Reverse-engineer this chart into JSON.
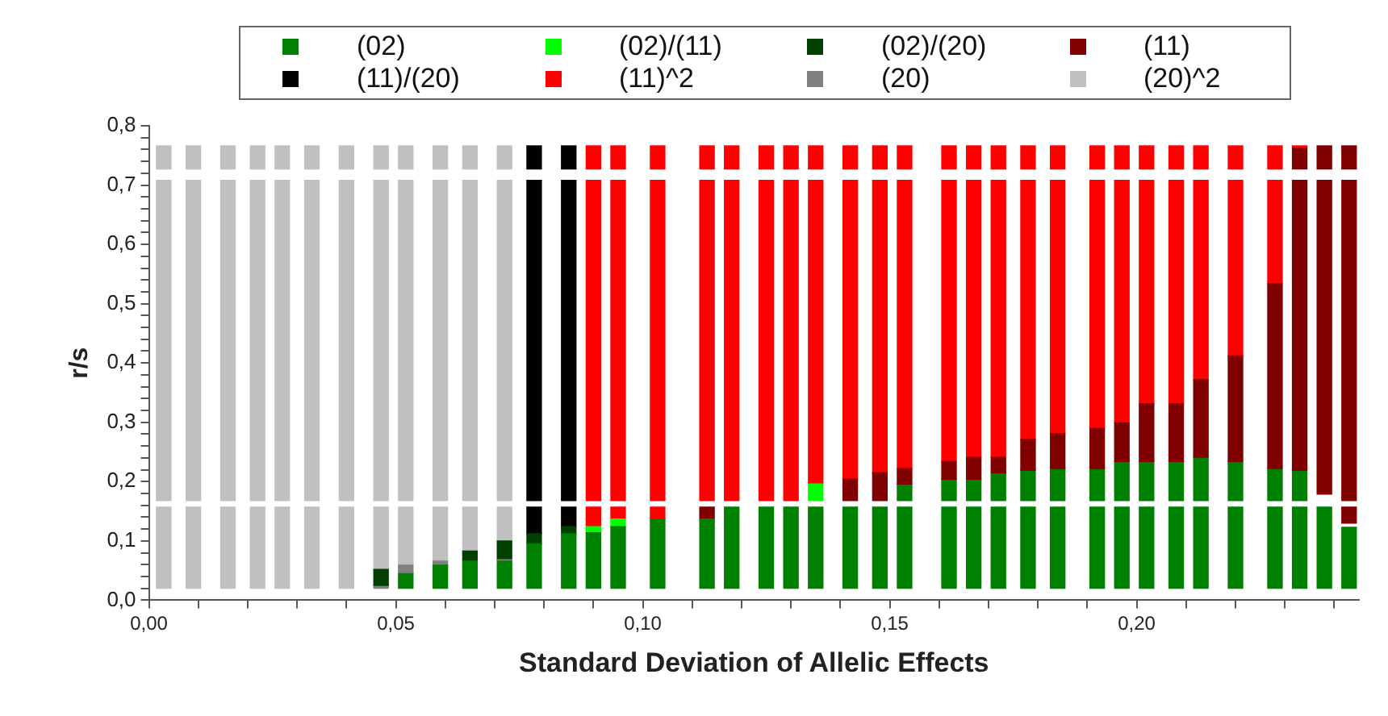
{
  "chart_data": {
    "type": "bar",
    "xlabel": "Standard Deviation of Allelic Effects",
    "ylabel": "r/s",
    "legend": "top",
    "xlim": [
      0,
      0.245
    ],
    "ylim": [
      0,
      0.8
    ],
    "xticks": [
      {
        "value": 0,
        "label": "0,00"
      },
      {
        "value": 0.01,
        "label": null
      },
      {
        "value": 0.02,
        "label": null
      },
      {
        "value": 0.03,
        "label": null
      },
      {
        "value": 0.04,
        "label": null
      },
      {
        "value": 0.05,
        "label": "0,05"
      },
      {
        "value": 0.06,
        "label": null
      },
      {
        "value": 0.07,
        "label": null
      },
      {
        "value": 0.08,
        "label": null
      },
      {
        "value": 0.09,
        "label": null
      },
      {
        "value": 0.1,
        "label": "0,10"
      },
      {
        "value": 0.11,
        "label": null
      },
      {
        "value": 0.12,
        "label": null
      },
      {
        "value": 0.13,
        "label": null
      },
      {
        "value": 0.14,
        "label": null
      },
      {
        "value": 0.15,
        "label": "0,15"
      },
      {
        "value": 0.16,
        "label": null
      },
      {
        "value": 0.17,
        "label": null
      },
      {
        "value": 0.18,
        "label": null
      },
      {
        "value": 0.19,
        "label": null
      },
      {
        "value": 0.2,
        "label": "0,20"
      },
      {
        "value": 0.21,
        "label": null
      },
      {
        "value": 0.22,
        "label": null
      },
      {
        "value": 0.23,
        "label": null
      },
      {
        "value": 0.24,
        "label": null
      }
    ],
    "yticks": [
      {
        "value": 0,
        "label": "0,0"
      },
      {
        "value": 0.02,
        "label": null
      },
      {
        "value": 0.04,
        "label": null
      },
      {
        "value": 0.06,
        "label": null
      },
      {
        "value": 0.08,
        "label": null
      },
      {
        "value": 0.1,
        "label": "0,1"
      },
      {
        "value": 0.12,
        "label": null
      },
      {
        "value": 0.14,
        "label": null
      },
      {
        "value": 0.16,
        "label": null
      },
      {
        "value": 0.18,
        "label": null
      },
      {
        "value": 0.2,
        "label": "0,2"
      },
      {
        "value": 0.22,
        "label": null
      },
      {
        "value": 0.24,
        "label": null
      },
      {
        "value": 0.26,
        "label": null
      },
      {
        "value": 0.28,
        "label": null
      },
      {
        "value": 0.3,
        "label": "0,3"
      },
      {
        "value": 0.32,
        "label": null
      },
      {
        "value": 0.34,
        "label": null
      },
      {
        "value": 0.36,
        "label": null
      },
      {
        "value": 0.38,
        "label": null
      },
      {
        "value": 0.4,
        "label": "0,4"
      },
      {
        "value": 0.42,
        "label": null
      },
      {
        "value": 0.44,
        "label": null
      },
      {
        "value": 0.46,
        "label": null
      },
      {
        "value": 0.48,
        "label": null
      },
      {
        "value": 0.5,
        "label": "0,5"
      },
      {
        "value": 0.52,
        "label": null
      },
      {
        "value": 0.54,
        "label": null
      },
      {
        "value": 0.56,
        "label": null
      },
      {
        "value": 0.58,
        "label": null
      },
      {
        "value": 0.6,
        "label": "0,6"
      },
      {
        "value": 0.62,
        "label": null
      },
      {
        "value": 0.64,
        "label": null
      },
      {
        "value": 0.66,
        "label": null
      },
      {
        "value": 0.68,
        "label": null
      },
      {
        "value": 0.7,
        "label": "0,7"
      },
      {
        "value": 0.72,
        "label": null
      },
      {
        "value": 0.74,
        "label": null
      },
      {
        "value": 0.76,
        "label": null
      },
      {
        "value": 0.78,
        "label": null
      },
      {
        "value": 0.8,
        "label": "0,8"
      }
    ],
    "series": [
      {
        "name": "(02)",
        "color": "#008000",
        "x": [
          0.052,
          0.059,
          0.065,
          0.072,
          0.078,
          0.085,
          0.09,
          0.095,
          0.103,
          0.113,
          0.118,
          0.125,
          0.13,
          0.135,
          0.142,
          0.148,
          0.153,
          0.162,
          0.167,
          0.172,
          0.178,
          0.184,
          0.192,
          0.197,
          0.202,
          0.208,
          0.213,
          0.22,
          0.228,
          0.233,
          0.238,
          0.243
        ],
        "base": [
          0.02,
          0.02,
          0.02,
          0.02,
          0.02,
          0.02,
          0.02,
          0.02,
          0.02,
          0.02,
          0.02,
          0.02,
          0.02,
          0.02,
          0.02,
          0.02,
          0.02,
          0.02,
          0.02,
          0.02,
          0.02,
          0.02,
          0.02,
          0.02,
          0.02,
          0.02,
          0.02,
          0.02,
          0.02,
          0.02,
          0.02,
          0.02
        ],
        "values": [
          0.025,
          0.039,
          0.046,
          0.046,
          0.075,
          0.092,
          0.094,
          0.104,
          0.117,
          0.117,
          0.137,
          0.137,
          0.137,
          0.137,
          0.137,
          0.137,
          0.137,
          0.137,
          0.137,
          0.137,
          0.137,
          0.137,
          0.137,
          0.137,
          0.137,
          0.137,
          0.137,
          0.137,
          0.137,
          0.137,
          0.137,
          0.103
        ]
      },
      {
        "name": "(02)/(11)",
        "color": "#00ff00",
        "x": [
          0.09,
          0.095,
          0.135
        ],
        "base": [
          0.114,
          0.124,
          0.168
        ],
        "values": [
          0.01,
          0.013,
          0.028
        ]
      },
      {
        "name": "(02)/(20)",
        "color": "#004000",
        "x": [
          0.047,
          0.065,
          0.072,
          0.078,
          0.085
        ],
        "base": [
          0.025,
          0.066,
          0.07,
          0.095,
          0.112
        ],
        "values": [
          0.027,
          0.017,
          0.03,
          0.017,
          0.012
        ]
      },
      {
        "name": "(11)",
        "color": "#800000",
        "x": [
          0.113,
          0.142,
          0.148,
          0.153,
          0.162,
          0.167,
          0.172,
          0.178,
          0.184,
          0.192,
          0.197,
          0.202,
          0.208,
          0.213,
          0.22,
          0.228,
          0.233,
          0.238,
          0.243
        ],
        "base": [
          0.137,
          0.168,
          0.168,
          0.196,
          0.204,
          0.204,
          0.215,
          0.219,
          0.222,
          0.222,
          0.234,
          0.234,
          0.234,
          0.241,
          0.234,
          0.222,
          0.219,
          0.179,
          0.168
        ],
        "values": [
          0.02,
          0.036,
          0.047,
          0.026,
          0.03,
          0.037,
          0.026,
          0.052,
          0.059,
          0.068,
          0.065,
          0.097,
          0.097,
          0.131,
          0.178,
          0.312,
          0.489,
          0.529,
          0.54
        ]
      },
      {
        "name": "(11)/(20)",
        "color": "#000000",
        "x": [
          0.078,
          0.085
        ],
        "base": [
          0.112,
          0.124
        ],
        "values": [
          0.045,
          0.033
        ]
      },
      {
        "name": "(11)^2",
        "color": "#ff0000",
        "x": [
          0.09,
          0.095,
          0.103
        ],
        "base": [
          0.124,
          0.137,
          0.137
        ],
        "values": [
          0.033,
          0.02,
          0.02
        ]
      },
      {
        "name": "(20)",
        "color": "#808080",
        "x": [
          0.047,
          0.052,
          0.059,
          0.072
        ],
        "base": [
          0.02,
          0.045,
          0.059,
          0.066
        ],
        "values": [
          0.005,
          0.014,
          0.007,
          0.004
        ]
      },
      {
        "name": "(20)^2",
        "color": "#c0c0c0",
        "x": [
          0.003,
          0.009,
          0.016,
          0.022,
          0.027,
          0.033,
          0.04,
          0.047,
          0.052,
          0.059,
          0.065,
          0.072
        ],
        "base": [
          0.02,
          0.02,
          0.02,
          0.02,
          0.02,
          0.02,
          0.02,
          0.052,
          0.059,
          0.066,
          0.083,
          0.1
        ],
        "values": [
          0.137,
          0.137,
          0.137,
          0.137,
          0.137,
          0.137,
          0.137,
          0.105,
          0.098,
          0.091,
          0.074,
          0.057
        ]
      },
      {
        "color": "#008000",
        "x": [
          0.153,
          0.162,
          0.167,
          0.172,
          0.178,
          0.184,
          0.192,
          0.197,
          0.202,
          0.208,
          0.213,
          0.22,
          0.228,
          0.233
        ],
        "base": [
          0.168,
          0.168,
          0.168,
          0.168,
          0.168,
          0.168,
          0.168,
          0.168,
          0.168,
          0.168,
          0.168,
          0.168,
          0.168,
          0.168
        ],
        "values": [
          0.028,
          0.036,
          0.036,
          0.047,
          0.051,
          0.054,
          0.054,
          0.066,
          0.066,
          0.066,
          0.073,
          0.066,
          0.054,
          0.051
        ]
      },
      {
        "color": "#800000",
        "x": [
          0.233,
          0.238,
          0.243
        ],
        "base": [
          0.727,
          0.727,
          0.727
        ],
        "values": [
          0.035,
          0.039,
          0.039
        ]
      },
      {
        "color": "#800000",
        "x": [
          0.243
        ],
        "base": [
          0.13
        ],
        "values": [
          0.027
        ]
      },
      {
        "color": "#000000",
        "x": [
          0.078,
          0.085
        ],
        "base": [
          0.168,
          0.168
        ],
        "values": [
          0.54,
          0.54
        ]
      },
      {
        "color": "#000000",
        "x": [
          0.078,
          0.085
        ],
        "base": [
          0.727,
          0.727
        ],
        "values": [
          0.039,
          0.039
        ]
      },
      {
        "color": "#ff0000",
        "x": [
          0.09,
          0.095,
          0.103,
          0.113,
          0.118,
          0.125,
          0.13,
          0.135,
          0.142,
          0.148,
          0.153,
          0.162,
          0.167,
          0.172,
          0.178,
          0.184,
          0.192,
          0.197,
          0.202,
          0.208,
          0.213,
          0.22,
          0.228
        ],
        "base": [
          0.168,
          0.168,
          0.168,
          0.168,
          0.168,
          0.168,
          0.168,
          0.196,
          0.204,
          0.215,
          0.222,
          0.234,
          0.241,
          0.241,
          0.271,
          0.281,
          0.29,
          0.299,
          0.331,
          0.331,
          0.372,
          0.412,
          0.534
        ],
        "values": [
          0.54,
          0.54,
          0.54,
          0.54,
          0.54,
          0.54,
          0.54,
          0.512,
          0.504,
          0.493,
          0.486,
          0.474,
          0.467,
          0.467,
          0.437,
          0.427,
          0.418,
          0.409,
          0.377,
          0.377,
          0.336,
          0.296,
          0.174
        ]
      },
      {
        "color": "#ff0000",
        "x": [
          0.09,
          0.095,
          0.103,
          0.113,
          0.118,
          0.125,
          0.13,
          0.135,
          0.142,
          0.148,
          0.153,
          0.162,
          0.167,
          0.172,
          0.178,
          0.184,
          0.192,
          0.197,
          0.202,
          0.208,
          0.213,
          0.22,
          0.228,
          0.233
        ],
        "base": [
          0.727,
          0.727,
          0.727,
          0.727,
          0.727,
          0.727,
          0.727,
          0.727,
          0.727,
          0.727,
          0.727,
          0.727,
          0.727,
          0.727,
          0.727,
          0.727,
          0.727,
          0.727,
          0.727,
          0.727,
          0.727,
          0.727,
          0.727,
          0.762
        ],
        "values": [
          0.039,
          0.039,
          0.039,
          0.039,
          0.039,
          0.039,
          0.039,
          0.039,
          0.039,
          0.039,
          0.039,
          0.039,
          0.039,
          0.039,
          0.039,
          0.039,
          0.039,
          0.039,
          0.039,
          0.039,
          0.039,
          0.039,
          0.039,
          0.004
        ]
      },
      {
        "color": "#c0c0c0",
        "x": [
          0.003,
          0.009,
          0.016,
          0.022,
          0.027,
          0.033,
          0.04,
          0.047,
          0.052,
          0.059,
          0.065,
          0.072
        ],
        "base": [
          0.168,
          0.168,
          0.168,
          0.168,
          0.168,
          0.168,
          0.168,
          0.168,
          0.168,
          0.168,
          0.168,
          0.168
        ],
        "values": [
          0.54,
          0.54,
          0.54,
          0.54,
          0.54,
          0.54,
          0.54,
          0.54,
          0.54,
          0.54,
          0.54,
          0.54
        ]
      },
      {
        "color": "#c0c0c0",
        "x": [
          0.003,
          0.009,
          0.016,
          0.022,
          0.027,
          0.033,
          0.04,
          0.047,
          0.052,
          0.059,
          0.065,
          0.072
        ],
        "base": [
          0.727,
          0.727,
          0.727,
          0.727,
          0.727,
          0.727,
          0.727,
          0.727,
          0.727,
          0.727,
          0.727,
          0.727
        ],
        "values": [
          0.039,
          0.039,
          0.039,
          0.039,
          0.039,
          0.039,
          0.039,
          0.039,
          0.039,
          0.039,
          0.039,
          0.039
        ]
      }
    ]
  }
}
